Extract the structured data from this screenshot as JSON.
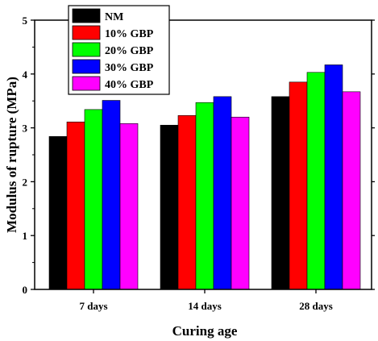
{
  "chart_data": {
    "type": "bar",
    "title": "",
    "xlabel": "Curing age",
    "ylabel": "Modulus of rupture (MPa)",
    "categories": [
      "7 days",
      "14 days",
      "28 days"
    ],
    "ylim": [
      0,
      5
    ],
    "yticks": [
      "0",
      "1",
      "2",
      "3",
      "4",
      "5"
    ],
    "grid": false,
    "legend_position": "top-left",
    "series": [
      {
        "name": "NM",
        "color": "#000000",
        "values": [
          2.84,
          3.05,
          3.58
        ]
      },
      {
        "name": "10% GBP",
        "color": "#ff0000",
        "values": [
          3.11,
          3.23,
          3.85
        ]
      },
      {
        "name": "20% GBP",
        "color": "#00ff00",
        "values": [
          3.34,
          3.47,
          4.03
        ]
      },
      {
        "name": "30% GBP",
        "color": "#0000ff",
        "values": [
          3.51,
          3.58,
          4.17
        ]
      },
      {
        "name": "40% GBP",
        "color": "#ff00ff",
        "values": [
          3.08,
          3.2,
          3.67
        ]
      }
    ]
  }
}
